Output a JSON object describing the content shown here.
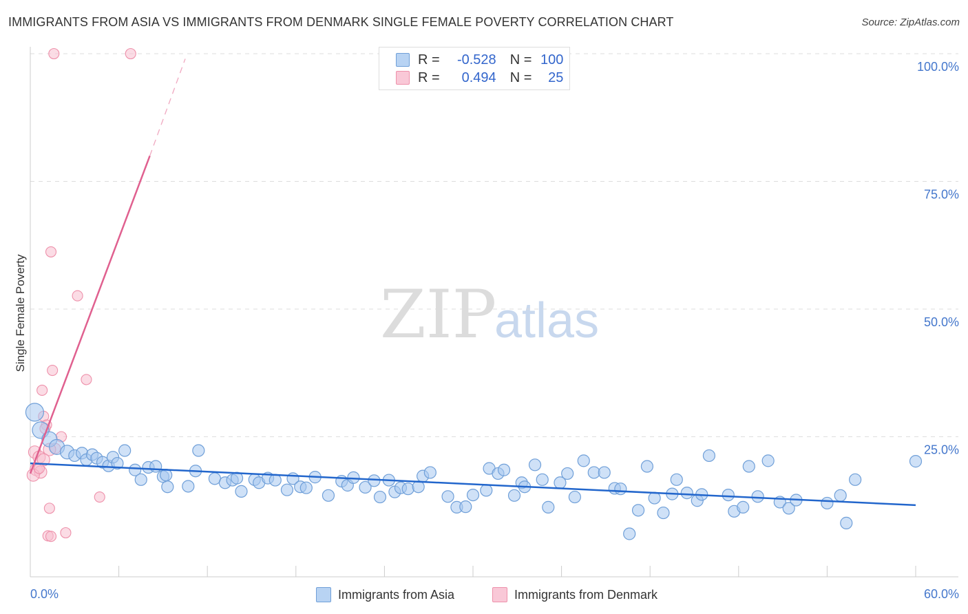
{
  "title": "IMMIGRANTS FROM ASIA VS IMMIGRANTS FROM DENMARK SINGLE FEMALE POVERTY CORRELATION CHART",
  "source": "Source: ZipAtlas.com",
  "watermark": {
    "zip": "ZIP",
    "atlas": "atlas"
  },
  "legend": {
    "r_label": "R =",
    "n_label": "N =",
    "asia": {
      "r": "-0.528",
      "n": "100"
    },
    "denmark": {
      "r": "0.494",
      "n": "25"
    }
  },
  "colors": {
    "asia_fill": "#a8c8f0",
    "asia_stroke": "#6f9fd8",
    "asia_line": "#2266cc",
    "denmark_fill": "#f8c0d0",
    "denmark_stroke": "#ee90aa",
    "denmark_line": "#e0608f",
    "grid": "#dddddd",
    "tick_text": "#4477cc"
  },
  "chart_data": {
    "type": "scatter",
    "title": "IMMIGRANTS FROM ASIA VS IMMIGRANTS FROM DENMARK SINGLE FEMALE POVERTY CORRELATION CHART",
    "xlabel": "",
    "ylabel": "Single Female Poverty",
    "xlim": [
      0,
      60
    ],
    "ylim": [
      0,
      100
    ],
    "x_tick_labels": [
      "0.0%",
      "60.0%"
    ],
    "y_tick_values": [
      25,
      50,
      75,
      100
    ],
    "y_tick_labels": [
      "25.0%",
      "50.0%",
      "75.0%",
      "100.0%"
    ],
    "grid": true,
    "series": [
      {
        "name": "Immigrants from Asia",
        "r": -0.528,
        "n": 100,
        "trend": {
          "x0": 0,
          "y0": 19.8,
          "x1": 60,
          "y1": 11.6
        },
        "points": [
          [
            0.3,
            29.8
          ],
          [
            0.7,
            26.3
          ],
          [
            1.3,
            24.5
          ],
          [
            1.8,
            23.0
          ],
          [
            2.5,
            22.0
          ],
          [
            3.0,
            21.3
          ],
          [
            3.5,
            21.8
          ],
          [
            3.8,
            20.5
          ],
          [
            4.2,
            21.5
          ],
          [
            4.5,
            20.8
          ],
          [
            4.9,
            20.0
          ],
          [
            5.3,
            19.3
          ],
          [
            5.6,
            21.0
          ],
          [
            5.9,
            19.8
          ],
          [
            6.4,
            22.3
          ],
          [
            7.1,
            18.5
          ],
          [
            7.5,
            16.6
          ],
          [
            8.0,
            19.0
          ],
          [
            8.5,
            19.2
          ],
          [
            9.0,
            17.2
          ],
          [
            9.2,
            17.5
          ],
          [
            9.3,
            15.2
          ],
          [
            10.7,
            15.3
          ],
          [
            11.2,
            18.3
          ],
          [
            11.4,
            22.3
          ],
          [
            12.5,
            16.8
          ],
          [
            13.2,
            16.0
          ],
          [
            13.7,
            16.5
          ],
          [
            14.0,
            16.9
          ],
          [
            14.3,
            14.3
          ],
          [
            15.2,
            16.6
          ],
          [
            15.5,
            16.0
          ],
          [
            16.1,
            16.9
          ],
          [
            16.6,
            16.5
          ],
          [
            17.4,
            14.6
          ],
          [
            17.8,
            16.8
          ],
          [
            18.3,
            15.2
          ],
          [
            18.7,
            15.0
          ],
          [
            19.3,
            17.1
          ],
          [
            20.2,
            13.5
          ],
          [
            21.1,
            16.3
          ],
          [
            21.5,
            15.5
          ],
          [
            21.9,
            17.0
          ],
          [
            22.7,
            15.1
          ],
          [
            23.3,
            16.4
          ],
          [
            23.7,
            13.2
          ],
          [
            24.3,
            16.5
          ],
          [
            24.7,
            14.2
          ],
          [
            25.1,
            15.0
          ],
          [
            25.6,
            14.8
          ],
          [
            26.3,
            15.2
          ],
          [
            26.6,
            17.3
          ],
          [
            27.1,
            18.0
          ],
          [
            28.3,
            13.3
          ],
          [
            28.9,
            11.2
          ],
          [
            29.5,
            11.3
          ],
          [
            30.0,
            13.6
          ],
          [
            30.9,
            14.5
          ],
          [
            31.1,
            18.8
          ],
          [
            31.7,
            17.8
          ],
          [
            32.1,
            18.5
          ],
          [
            32.8,
            13.5
          ],
          [
            33.3,
            16.0
          ],
          [
            33.5,
            15.2
          ],
          [
            34.2,
            19.5
          ],
          [
            34.7,
            16.6
          ],
          [
            35.1,
            11.2
          ],
          [
            35.9,
            16.0
          ],
          [
            36.4,
            17.8
          ],
          [
            36.9,
            13.2
          ],
          [
            37.5,
            20.3
          ],
          [
            38.2,
            18.0
          ],
          [
            38.9,
            18.0
          ],
          [
            39.6,
            14.9
          ],
          [
            40.0,
            14.8
          ],
          [
            40.6,
            6.0
          ],
          [
            41.2,
            10.6
          ],
          [
            41.8,
            19.2
          ],
          [
            42.3,
            13.0
          ],
          [
            42.9,
            10.1
          ],
          [
            43.5,
            13.8
          ],
          [
            43.8,
            16.6
          ],
          [
            44.5,
            14.0
          ],
          [
            45.2,
            12.5
          ],
          [
            45.5,
            13.7
          ],
          [
            46.0,
            21.3
          ],
          [
            47.3,
            13.6
          ],
          [
            47.7,
            10.4
          ],
          [
            48.3,
            11.2
          ],
          [
            48.7,
            19.2
          ],
          [
            49.3,
            13.3
          ],
          [
            50.0,
            20.3
          ],
          [
            50.8,
            12.2
          ],
          [
            51.4,
            11.0
          ],
          [
            51.9,
            12.6
          ],
          [
            54.0,
            12.0
          ],
          [
            54.9,
            13.5
          ],
          [
            55.3,
            8.1
          ],
          [
            55.9,
            16.6
          ],
          [
            60.0,
            20.2
          ]
        ]
      },
      {
        "name": "Immigrants from Denmark",
        "r": 0.494,
        "n": 25,
        "trend": {
          "x0": 0,
          "y0": 17.8,
          "x1": 8.1,
          "y1": 80.0,
          "dashed_to": {
            "x": 10.5,
            "y": 99.0
          }
        },
        "points": [
          [
            1.6,
            100.0
          ],
          [
            6.8,
            100.0
          ],
          [
            1.4,
            61.2
          ],
          [
            3.2,
            52.6
          ],
          [
            1.5,
            38.0
          ],
          [
            3.8,
            36.2
          ],
          [
            0.8,
            34.1
          ],
          [
            0.9,
            29.0
          ],
          [
            1.1,
            27.3
          ],
          [
            1.0,
            26.6
          ],
          [
            2.1,
            25.0
          ],
          [
            1.7,
            22.7
          ],
          [
            0.3,
            22.0
          ],
          [
            0.6,
            21.0
          ],
          [
            0.4,
            18.6
          ],
          [
            0.7,
            18.1
          ],
          [
            0.2,
            17.5
          ],
          [
            1.3,
            22.5
          ],
          [
            0.9,
            20.5
          ],
          [
            4.7,
            13.2
          ],
          [
            1.3,
            11.0
          ],
          [
            1.2,
            5.6
          ],
          [
            1.4,
            5.5
          ],
          [
            2.4,
            6.2
          ],
          [
            0.6,
            18.8
          ]
        ]
      }
    ]
  },
  "bottom_legend": {
    "asia": "Immigrants from Asia",
    "denmark": "Immigrants from Denmark"
  }
}
